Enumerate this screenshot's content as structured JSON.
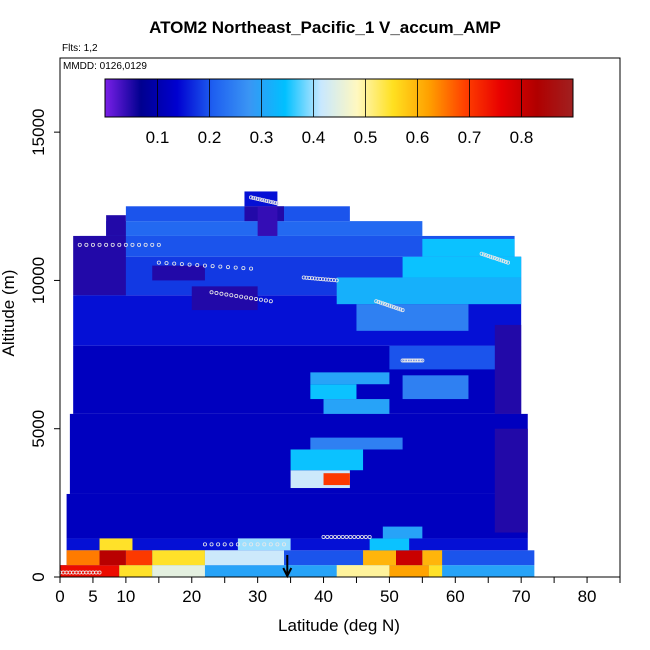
{
  "chart_data": {
    "type": "heatmap",
    "title": "ATOM2 Northeast_Pacific_1 V_accum_AMP",
    "flights_label": "Flts: 1,2",
    "mmdd_label": "MMDD: 0126,0129",
    "xlabel": "Latitude (deg N)",
    "ylabel": "Altitude (m)",
    "xlim": [
      0,
      85
    ],
    "ylim": [
      0,
      17500
    ],
    "x_ticks": [
      0,
      5,
      10,
      20,
      30,
      40,
      50,
      60,
      70,
      80
    ],
    "x_minor_ticks": [
      15,
      25,
      35,
      45,
      55,
      65,
      75,
      85
    ],
    "y_ticks": [
      0,
      5000,
      10000,
      15000
    ],
    "colorbar": {
      "range": [
        0.0,
        0.9
      ],
      "ticks": [
        0.1,
        0.2,
        0.3,
        0.4,
        0.5,
        0.6,
        0.7,
        0.8
      ],
      "colors": [
        "#7a1fe8",
        "#00008f",
        "#0000d0",
        "#1e5ff0",
        "#3a95f4",
        "#00c0ff",
        "#c8e8ff",
        "#fff8c0",
        "#ffe020",
        "#ffa000",
        "#ff4000",
        "#e80000",
        "#b00000",
        "#a02020"
      ]
    },
    "profile_bands": [
      {
        "alt": [
          0,
          400
        ],
        "lat": [
          0,
          72
        ],
        "value": 0.3
      },
      {
        "alt": [
          400,
          900
        ],
        "lat": [
          1,
          72
        ],
        "value": 0.2
      },
      {
        "alt": [
          900,
          1300
        ],
        "lat": [
          1,
          71
        ],
        "value": 0.15
      },
      {
        "alt": [
          1300,
          2800
        ],
        "lat": [
          1,
          71
        ],
        "value": 0.12
      },
      {
        "alt": [
          2800,
          5500
        ],
        "lat": [
          1.5,
          71
        ],
        "value": 0.12
      },
      {
        "alt": [
          5500,
          7800
        ],
        "lat": [
          2,
          70
        ],
        "value": 0.12
      },
      {
        "alt": [
          7800,
          9500
        ],
        "lat": [
          2,
          70
        ],
        "value": 0.15
      },
      {
        "alt": [
          9500,
          10800
        ],
        "lat": [
          2.5,
          70
        ],
        "value": 0.18
      },
      {
        "alt": [
          10800,
          11500
        ],
        "lat": [
          3,
          69
        ],
        "value": 0.2
      },
      {
        "alt": [
          11500,
          12000
        ],
        "lat": [
          7,
          55
        ],
        "value": 0.22
      },
      {
        "alt": [
          12000,
          12500
        ],
        "lat": [
          10,
          44
        ],
        "value": 0.2
      },
      {
        "alt": [
          12500,
          13000
        ],
        "lat": [
          28,
          33
        ],
        "value": 0.15
      }
    ],
    "features": [
      {
        "alt": [
          0,
          400
        ],
        "lat": [
          0,
          9
        ],
        "value": 0.75
      },
      {
        "alt": [
          0,
          400
        ],
        "lat": [
          9,
          14
        ],
        "value": 0.55
      },
      {
        "alt": [
          0,
          400
        ],
        "lat": [
          14,
          22
        ],
        "value": 0.45
      },
      {
        "alt": [
          0,
          400
        ],
        "lat": [
          42,
          50
        ],
        "value": 0.5
      },
      {
        "alt": [
          0,
          400
        ],
        "lat": [
          50,
          56
        ],
        "value": 0.62
      },
      {
        "alt": [
          0,
          400
        ],
        "lat": [
          56,
          58
        ],
        "value": 0.55
      },
      {
        "alt": [
          400,
          900
        ],
        "lat": [
          1,
          6
        ],
        "value": 0.65
      },
      {
        "alt": [
          400,
          900
        ],
        "lat": [
          6,
          10
        ],
        "value": 0.82
      },
      {
        "alt": [
          400,
          900
        ],
        "lat": [
          10,
          14
        ],
        "value": 0.7
      },
      {
        "alt": [
          400,
          900
        ],
        "lat": [
          14,
          22
        ],
        "value": 0.55
      },
      {
        "alt": [
          400,
          900
        ],
        "lat": [
          22,
          34
        ],
        "value": 0.42
      },
      {
        "alt": [
          400,
          900
        ],
        "lat": [
          46,
          51
        ],
        "value": 0.6
      },
      {
        "alt": [
          400,
          900
        ],
        "lat": [
          51,
          55
        ],
        "value": 0.8
      },
      {
        "alt": [
          400,
          900
        ],
        "lat": [
          55,
          58
        ],
        "value": 0.6
      },
      {
        "alt": [
          900,
          1300
        ],
        "lat": [
          6,
          11
        ],
        "value": 0.55
      },
      {
        "alt": [
          900,
          1300
        ],
        "lat": [
          27,
          35
        ],
        "value": 0.4
      },
      {
        "alt": [
          900,
          1300
        ],
        "lat": [
          47,
          53
        ],
        "value": 0.35
      },
      {
        "alt": [
          1300,
          1700
        ],
        "lat": [
          49,
          55
        ],
        "value": 0.3
      },
      {
        "alt": [
          3000,
          3600
        ],
        "lat": [
          35,
          44
        ],
        "value": 0.42
      },
      {
        "alt": [
          3100,
          3500
        ],
        "lat": [
          40,
          44
        ],
        "value": 0.7
      },
      {
        "alt": [
          3600,
          4300
        ],
        "lat": [
          35,
          46
        ],
        "value": 0.35
      },
      {
        "alt": [
          4300,
          4700
        ],
        "lat": [
          38,
          52
        ],
        "value": 0.25
      },
      {
        "alt": [
          5500,
          6000
        ],
        "lat": [
          40,
          50
        ],
        "value": 0.3
      },
      {
        "alt": [
          6000,
          6500
        ],
        "lat": [
          38,
          45
        ],
        "value": 0.35
      },
      {
        "alt": [
          6500,
          6900
        ],
        "lat": [
          38,
          50
        ],
        "value": 0.3
      },
      {
        "alt": [
          6000,
          6800
        ],
        "lat": [
          52,
          62
        ],
        "value": 0.25
      },
      {
        "alt": [
          7000,
          7800
        ],
        "lat": [
          50,
          68
        ],
        "value": 0.2
      },
      {
        "alt": [
          8300,
          9200
        ],
        "lat": [
          45,
          62
        ],
        "value": 0.25
      },
      {
        "alt": [
          9200,
          10100
        ],
        "lat": [
          42,
          70
        ],
        "value": 0.32
      },
      {
        "alt": [
          10100,
          10800
        ],
        "lat": [
          52,
          70
        ],
        "value": 0.35
      },
      {
        "alt": [
          10800,
          11400
        ],
        "lat": [
          55,
          69
        ],
        "value": 0.35
      },
      {
        "alt": [
          9500,
          11500
        ],
        "lat": [
          2,
          10
        ],
        "value": 0.05
      },
      {
        "alt": [
          10000,
          10500
        ],
        "lat": [
          14,
          22
        ],
        "value": 0.05
      },
      {
        "alt": [
          9000,
          9800
        ],
        "lat": [
          20,
          30
        ],
        "value": 0.05
      },
      {
        "alt": [
          11500,
          12200
        ],
        "lat": [
          7,
          10
        ],
        "value": 0.05
      },
      {
        "alt": [
          12000,
          12500
        ],
        "lat": [
          28,
          34
        ],
        "value": 0.05
      },
      {
        "alt": [
          1500,
          5000
        ],
        "lat": [
          66,
          71
        ],
        "value": 0.05
      },
      {
        "alt": [
          5500,
          8500
        ],
        "lat": [
          66,
          70
        ],
        "value": 0.05
      },
      {
        "alt": [
          11500,
          12500
        ],
        "lat": [
          30,
          33
        ],
        "value": 0.04
      }
    ],
    "flight_tracks": [
      {
        "lat": [
          3,
          15
        ],
        "alt": [
          11200,
          11200
        ]
      },
      {
        "lat": [
          15,
          29
        ],
        "alt": [
          10600,
          10400
        ]
      },
      {
        "lat": [
          23,
          32
        ],
        "alt": [
          9600,
          9300
        ]
      },
      {
        "lat": [
          29,
          33
        ],
        "alt": [
          12800,
          12600
        ]
      },
      {
        "lat": [
          37,
          42
        ],
        "alt": [
          10100,
          10000
        ]
      },
      {
        "lat": [
          48,
          52
        ],
        "alt": [
          9300,
          9000
        ]
      },
      {
        "lat": [
          52,
          55
        ],
        "alt": [
          7300,
          7300
        ]
      },
      {
        "lat": [
          64,
          68
        ],
        "alt": [
          10900,
          10600
        ]
      },
      {
        "lat": [
          0,
          6
        ],
        "alt": [
          150,
          150
        ]
      },
      {
        "lat": [
          22,
          34
        ],
        "alt": [
          1100,
          1100
        ]
      },
      {
        "lat": [
          40,
          47
        ],
        "alt": [
          1350,
          1350
        ]
      }
    ],
    "arrow_marker": {
      "lat": 34.5,
      "alt": 0
    }
  }
}
